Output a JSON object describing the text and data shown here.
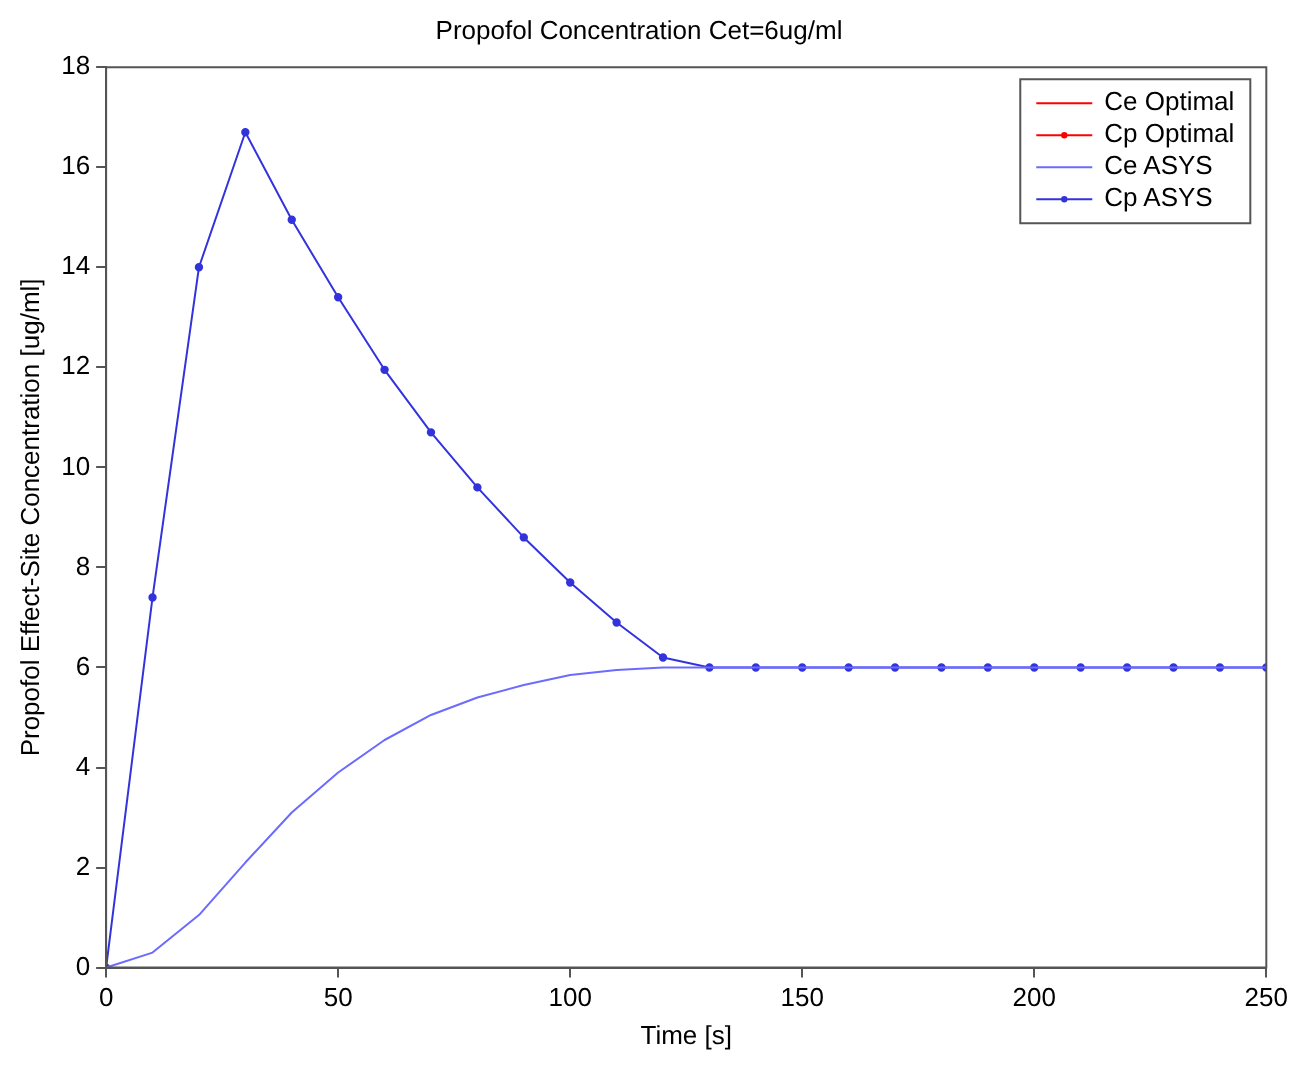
{
  "chart_data": {
    "type": "line",
    "title": "Propofol Concentration Cet=6ug/ml",
    "xlabel": "Time [s]",
    "ylabel": "Propofol Effect-Site Concentration [ug/ml]",
    "x": [
      0,
      10,
      20,
      30,
      40,
      50,
      60,
      70,
      80,
      90,
      100,
      110,
      120,
      130,
      140,
      150,
      160,
      170,
      180,
      190,
      200,
      210,
      220,
      230,
      240,
      250
    ],
    "series": [
      {
        "name": "Ce Optimal",
        "color": "#ff0000",
        "marker": "none",
        "values": [
          null,
          null,
          null,
          null,
          null,
          null,
          null,
          null,
          null,
          null,
          null,
          null,
          null,
          null,
          null,
          null,
          null,
          null,
          null,
          null,
          null,
          null,
          null,
          null,
          null,
          null
        ]
      },
      {
        "name": "Cp Optimal",
        "color": "#ff0000",
        "marker": "circle",
        "values": [
          null,
          null,
          null,
          null,
          null,
          null,
          null,
          null,
          null,
          null,
          null,
          null,
          null,
          null,
          null,
          null,
          null,
          null,
          null,
          null,
          null,
          null,
          null,
          null,
          null,
          null
        ]
      },
      {
        "name": "Ce ASYS",
        "color": "#6b6bff",
        "marker": "none",
        "values": [
          0,
          0.3,
          1.05,
          2.1,
          3.1,
          3.9,
          4.55,
          5.05,
          5.4,
          5.65,
          5.85,
          5.95,
          6.0,
          6.0,
          6.0,
          6.0,
          6.0,
          6.0,
          6.0,
          6.0,
          6.0,
          6.0,
          6.0,
          6.0,
          6.0,
          6.0
        ]
      },
      {
        "name": "Cp ASYS",
        "color": "#3333dd",
        "marker": "circle",
        "values": [
          0,
          7.4,
          14,
          16.7,
          14.95,
          13.4,
          11.95,
          10.7,
          9.6,
          8.6,
          7.7,
          6.9,
          6.2,
          6.0,
          6.0,
          6.0,
          6.0,
          6.0,
          6.0,
          6.0,
          6.0,
          6.0,
          6.0,
          6.0,
          6.0,
          6.0
        ]
      }
    ],
    "xlim": [
      0,
      250
    ],
    "xticks": [
      0,
      50,
      100,
      150,
      200,
      250
    ],
    "ylim": [
      0,
      18
    ],
    "yticks": [
      0,
      2,
      4,
      6,
      8,
      10,
      12,
      14,
      16,
      18
    ],
    "grid": false,
    "legend": "top right",
    "line_style": "solid"
  }
}
